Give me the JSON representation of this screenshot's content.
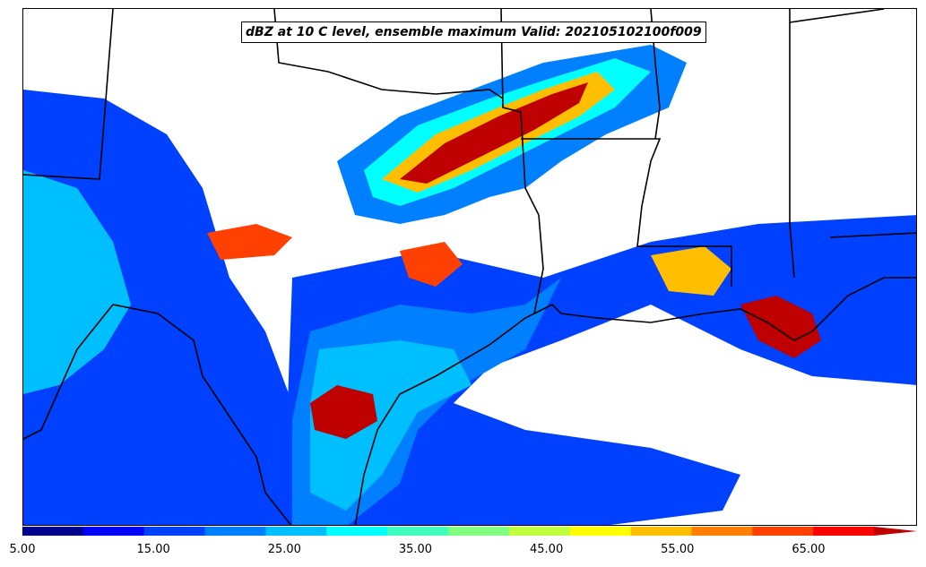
{
  "title": "dBZ at 10 C level, ensemble maximum Valid: 202105102100f009",
  "colorbar": {
    "min": 5,
    "max": 70,
    "step": 5,
    "extend": "max",
    "colors": [
      "#00008f",
      "#0000ff",
      "#0040ff",
      "#0080ff",
      "#00bfff",
      "#00ffff",
      "#40ffbf",
      "#80ff80",
      "#bfff40",
      "#ffff00",
      "#ffbf00",
      "#ff8000",
      "#ff4000",
      "#ff0000",
      "#bf0000"
    ],
    "tick_labels": [
      "5.00",
      "15.00",
      "25.00",
      "35.00",
      "45.00",
      "55.00",
      "65.00"
    ]
  }
}
